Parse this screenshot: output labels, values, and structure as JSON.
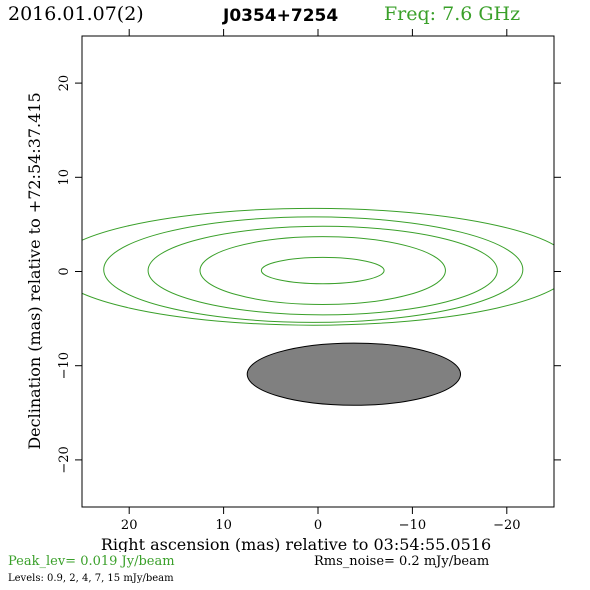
{
  "header": {
    "date": "2016.01.07(2)",
    "source": "J0354+7254",
    "frequency": "Freq: 7.6 GHz"
  },
  "footer": {
    "peak_level": "Peak_lev=  0.019 Jy/beam",
    "rms_noise": "Rms_noise=   0.2 mJy/beam",
    "levels": "Levels: 0.9,   2,   4,   7,   15 mJy/beam"
  },
  "colors": {
    "contour": "#3aa02a",
    "beam_fill": "#808080",
    "header_freq": "#3aa02a"
  },
  "chart_data": {
    "type": "contour",
    "xlabel": "Right ascension (mas) relative to 03:54:55.0516",
    "ylabel": "Declination (mas) relative to +72:54:37.415",
    "xlim": [
      25,
      -25
    ],
    "ylim": [
      -25,
      25
    ],
    "x_ticks": [
      20,
      10,
      0,
      -10,
      -20
    ],
    "x_tick_labels": [
      "20",
      "10",
      "0",
      "−10",
      "−20"
    ],
    "y_ticks": [
      20,
      10,
      0,
      -10,
      -20
    ],
    "y_tick_labels": [
      "20",
      "10",
      "0",
      "−10",
      "−20"
    ],
    "contour_levels_mJy_per_beam": [
      0.9,
      2,
      4,
      7,
      15
    ],
    "contours": [
      {
        "level": 0.9,
        "center": [
          0.5,
          0.5
        ],
        "semi_x": 27.5,
        "semi_y": 6.2
      },
      {
        "level": 2,
        "center": [
          0.5,
          0.2
        ],
        "semi_x": 22.2,
        "semi_y": 5.6
      },
      {
        "level": 4,
        "center": [
          -0.5,
          0.1
        ],
        "semi_x": 18.5,
        "semi_y": 4.7
      },
      {
        "level": 7,
        "center": [
          -0.5,
          0.1
        ],
        "semi_x": 13.0,
        "semi_y": 3.6
      },
      {
        "level": 15,
        "center": [
          -0.5,
          0.1
        ],
        "semi_x": 6.5,
        "semi_y": 1.4
      }
    ],
    "beam": {
      "center": [
        -3.8,
        -10.9
      ],
      "semi_x": 11.3,
      "semi_y": 3.3
    }
  }
}
